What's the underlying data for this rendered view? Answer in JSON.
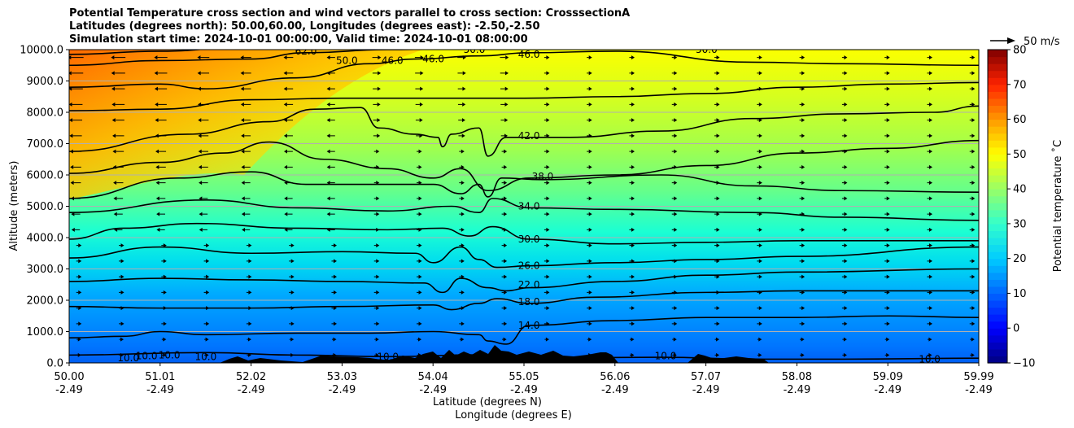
{
  "chart_data": {
    "type": "heatmap",
    "title_lines": [
      "Potential Temperature cross section and wind vectors parallel to cross section: CrosssectionA",
      "Latitudes (degrees north): 50.00,60.00, Longitudes (degrees east): -2.50,-2.50",
      "Simulation start time: 2024-10-01 00:00:00, Valid time: 2024-10-01 08:00:00"
    ],
    "xlabel_lat": "Latitude (degrees N)",
    "xlabel_lon": "Longitude (degrees E)",
    "ylabel": "Altitude (meters)",
    "x_tick_lat": [
      "50.00",
      "51.01",
      "52.02",
      "53.03",
      "54.04",
      "55.05",
      "56.06",
      "57.07",
      "58.08",
      "59.09",
      "59.99"
    ],
    "x_tick_lon": [
      "-2.49",
      "-2.49",
      "-2.49",
      "-2.49",
      "-2.49",
      "-2.49",
      "-2.49",
      "-2.49",
      "-2.49",
      "-2.49",
      "-2.49"
    ],
    "xlim": [
      50.0,
      59.99
    ],
    "ylim": [
      0,
      10000
    ],
    "y_ticks": [
      0,
      1000,
      2000,
      3000,
      4000,
      5000,
      6000,
      7000,
      8000,
      9000,
      10000
    ],
    "y_tick_labels": [
      "0.0",
      "1000.0",
      "2000.0",
      "3000.0",
      "4000.0",
      "5000.0",
      "6000.0",
      "7000.0",
      "8000.0",
      "9000.0",
      "10000.0"
    ],
    "grid": true,
    "colorbar": {
      "label": "Potential temperature ˚C",
      "min": -10,
      "max": 80,
      "ticks": [
        -10,
        0,
        10,
        20,
        30,
        40,
        50,
        60,
        70,
        80
      ],
      "tick_labels": [
        "−10",
        "0",
        "10",
        "20",
        "30",
        "40",
        "50",
        "60",
        "70",
        "80"
      ]
    },
    "quiver_key": "50 m/s",
    "contour_labels": [
      {
        "text": "10.0",
        "x": 50.65,
        "y": 150
      },
      {
        "text": "10.0",
        "x": 50.85,
        "y": 220
      },
      {
        "text": "10.0",
        "x": 51.1,
        "y": 250
      },
      {
        "text": "10.0",
        "x": 51.5,
        "y": 200
      },
      {
        "text": "10.0",
        "x": 53.5,
        "y": 200
      },
      {
        "text": "10.0",
        "x": 56.55,
        "y": 220
      },
      {
        "text": "10.0",
        "x": 59.45,
        "y": 120
      },
      {
        "text": "14.0",
        "x": 55.05,
        "y": 1200
      },
      {
        "text": "18.0",
        "x": 55.05,
        "y": 1950
      },
      {
        "text": "22.0",
        "x": 55.05,
        "y": 2500
      },
      {
        "text": "26.0",
        "x": 55.05,
        "y": 3100
      },
      {
        "text": "30.0",
        "x": 55.05,
        "y": 3950
      },
      {
        "text": "34.0",
        "x": 55.05,
        "y": 5000
      },
      {
        "text": "38.0",
        "x": 55.2,
        "y": 5950
      },
      {
        "text": "42.0",
        "x": 55.05,
        "y": 7250
      },
      {
        "text": "46.0",
        "x": 53.55,
        "y": 9650
      },
      {
        "text": "46.0",
        "x": 54.0,
        "y": 9700
      },
      {
        "text": "46.0",
        "x": 55.05,
        "y": 9850
      },
      {
        "text": "50.0",
        "x": 53.05,
        "y": 9650
      },
      {
        "text": "50.0",
        "x": 54.45,
        "y": 10000
      },
      {
        "text": "50.0",
        "x": 57.0,
        "y": 10000
      },
      {
        "text": "62.0",
        "x": 52.6,
        "y": 9950
      }
    ]
  }
}
